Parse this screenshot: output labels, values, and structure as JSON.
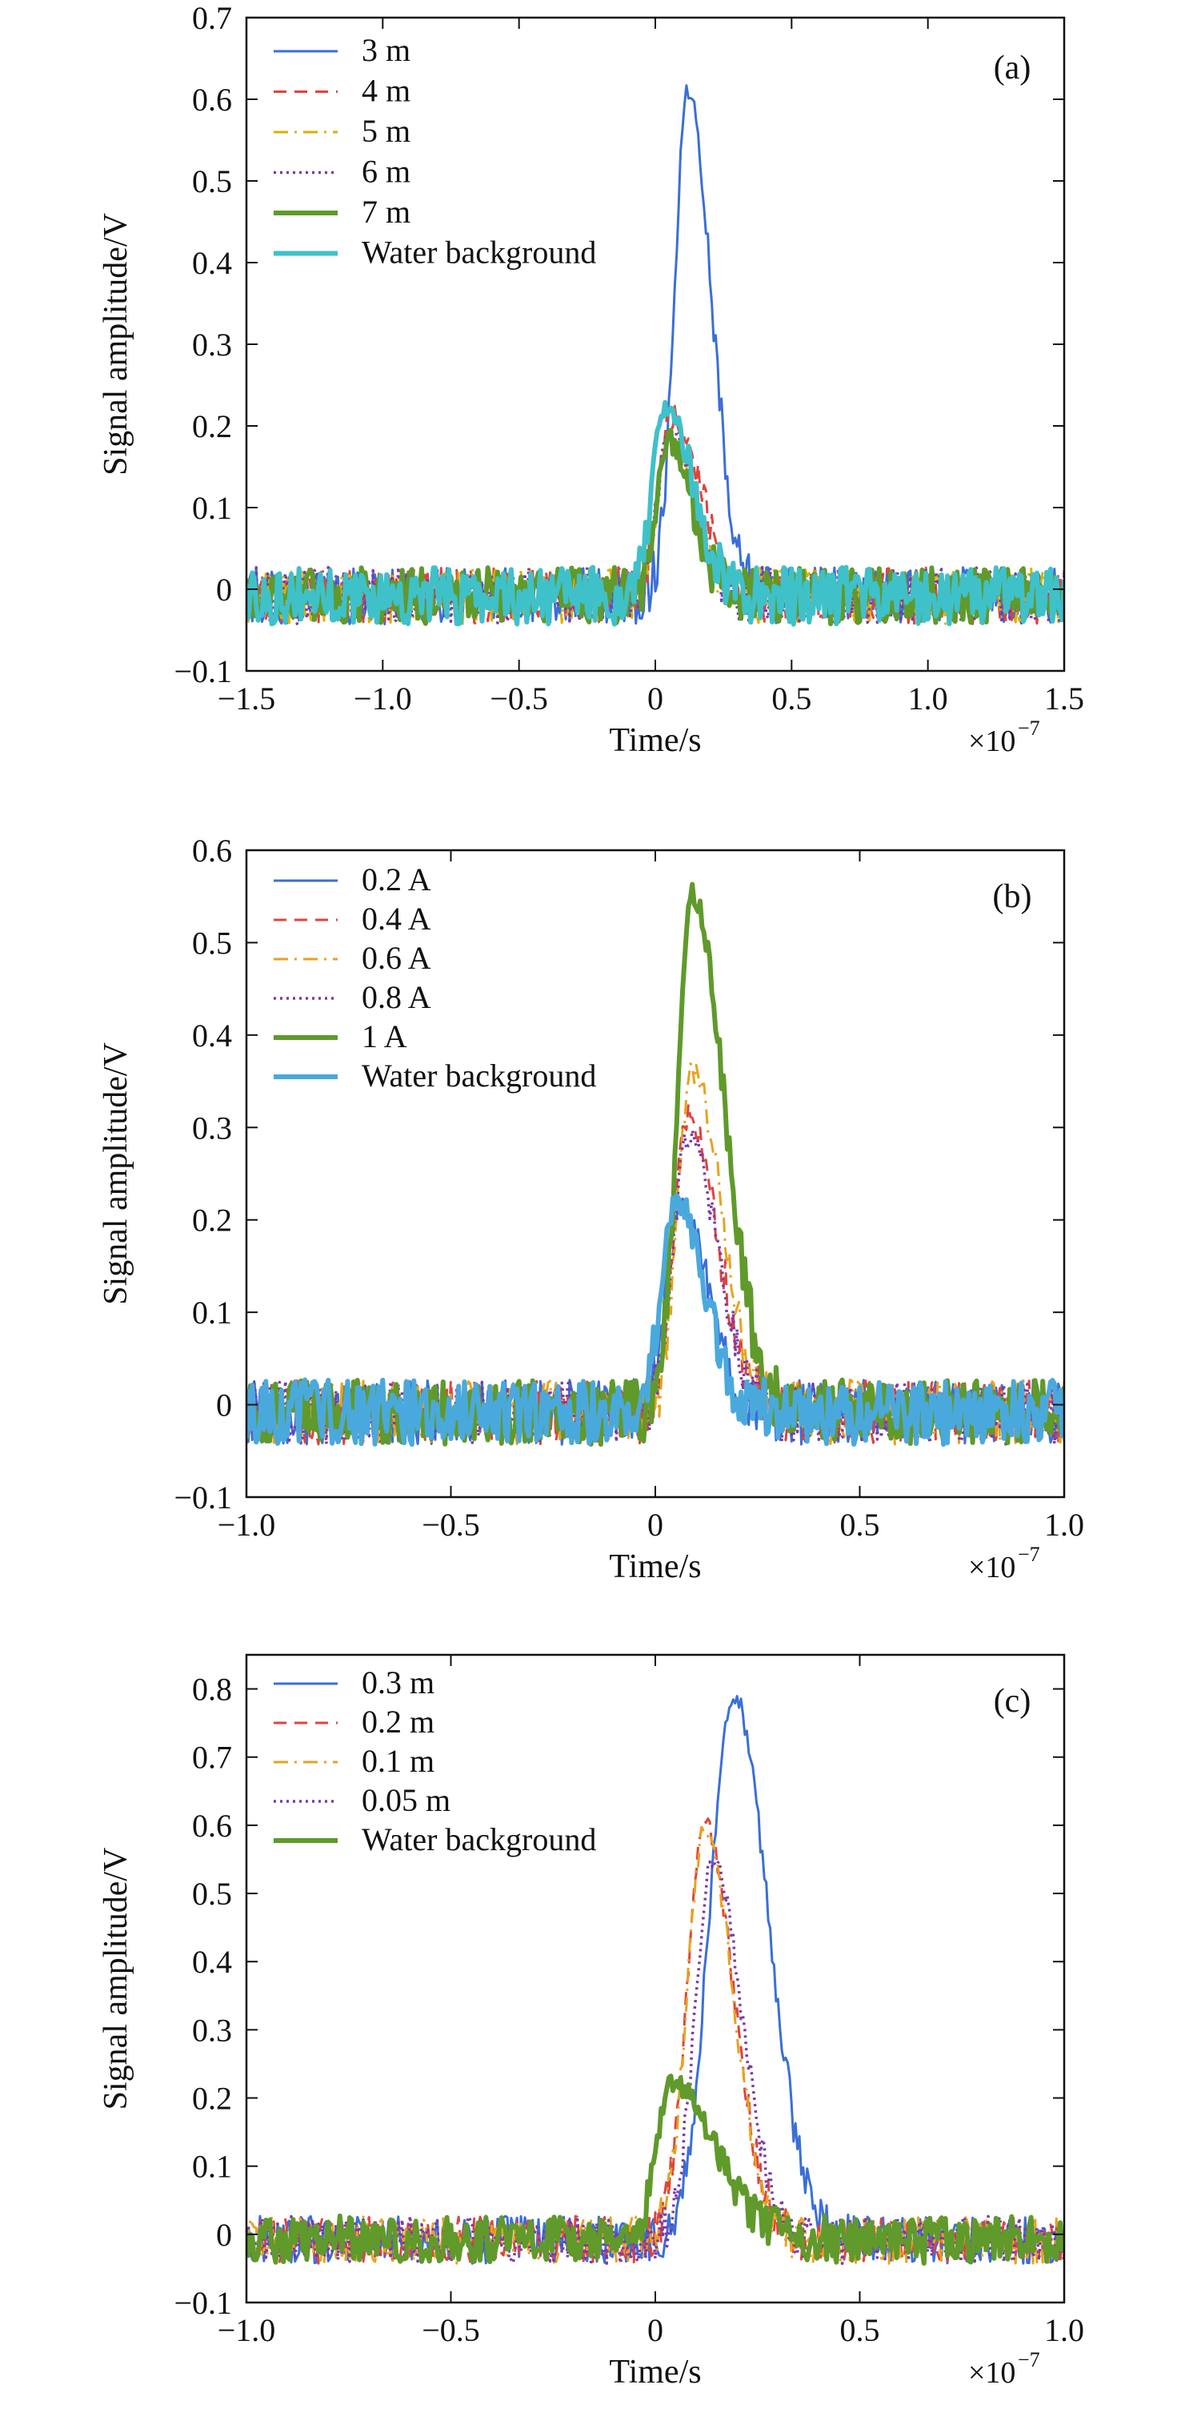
{
  "chart_data": [
    {
      "type": "line",
      "panel": "(a)",
      "xlabel": "Time/s",
      "ylabel": "Signal amplitude/V",
      "x_multiplier": "×10",
      "x_multiplier_exp": "−7",
      "xlim": [
        -1.5,
        1.5
      ],
      "ylim": [
        -0.1,
        0.7
      ],
      "xticks": [
        -1.5,
        -1.0,
        -0.5,
        0,
        0.5,
        1.0,
        1.5
      ],
      "xtick_labels": [
        "−1.5",
        "−1.0",
        "−0.5",
        "0",
        "0.5",
        "1.0",
        "1.5"
      ],
      "yticks": [
        -0.1,
        0,
        0.1,
        0.2,
        0.3,
        0.4,
        0.5,
        0.6,
        0.7
      ],
      "ytick_labels": [
        "−0.1",
        "0",
        "0.1",
        "0.2",
        "0.3",
        "0.4",
        "0.5",
        "0.6",
        "0.7"
      ],
      "legend_position": "top-left",
      "series": [
        {
          "name": "3 m",
          "color": "#3a6fd8",
          "style": "solid",
          "peak_x": 0.12,
          "peak_y": 0.62,
          "rise": 0.07,
          "fall": 0.12
        },
        {
          "name": "4 m",
          "color": "#e0443c",
          "style": "dashed",
          "peak_x": 0.06,
          "peak_y": 0.22,
          "rise": 0.07,
          "fall": 0.15
        },
        {
          "name": "5 m",
          "color": "#d9b200",
          "style": "dashdot",
          "peak_x": 0.05,
          "peak_y": 0.19,
          "rise": 0.06,
          "fall": 0.13
        },
        {
          "name": "6 m",
          "color": "#7b3aa8",
          "style": "dotted",
          "peak_x": 0.05,
          "peak_y": 0.2,
          "rise": 0.06,
          "fall": 0.13
        },
        {
          "name": "7 m",
          "color": "#5f9a2b",
          "style": "solid-thick",
          "peak_x": 0.05,
          "peak_y": 0.19,
          "rise": 0.06,
          "fall": 0.12
        },
        {
          "name": "Water background",
          "color": "#3fc1c9",
          "style": "solid-thick",
          "peak_x": 0.04,
          "peak_y": 0.23,
          "rise": 0.07,
          "fall": 0.14
        }
      ]
    },
    {
      "type": "line",
      "panel": "(b)",
      "xlabel": "Time/s",
      "ylabel": "Signal amplitude/V",
      "x_multiplier": "×10",
      "x_multiplier_exp": "−7",
      "xlim": [
        -1.0,
        1.0
      ],
      "ylim": [
        -0.1,
        0.6
      ],
      "xticks": [
        -1.0,
        -0.5,
        0,
        0.5,
        1.0
      ],
      "xtick_labels": [
        "−1.0",
        "−0.5",
        "0",
        "0.5",
        "1.0"
      ],
      "yticks": [
        -0.1,
        0,
        0.1,
        0.2,
        0.3,
        0.4,
        0.5,
        0.6
      ],
      "ytick_labels": [
        "−0.1",
        "0",
        "0.1",
        "0.2",
        "0.3",
        "0.4",
        "0.5",
        "0.6"
      ],
      "legend_position": "top-left",
      "series": [
        {
          "name": "0.2 A",
          "color": "#3a6fd8",
          "style": "solid",
          "peak_x": 0.06,
          "peak_y": 0.22,
          "rise": 0.05,
          "fall": 0.1
        },
        {
          "name": "0.4 A",
          "color": "#e0443c",
          "style": "dashed",
          "peak_x": 0.08,
          "peak_y": 0.32,
          "rise": 0.05,
          "fall": 0.1
        },
        {
          "name": "0.6 A",
          "color": "#e8a21f",
          "style": "dashdot",
          "peak_x": 0.09,
          "peak_y": 0.37,
          "rise": 0.05,
          "fall": 0.1
        },
        {
          "name": "0.8 A",
          "color": "#7b3aa8",
          "style": "dotted",
          "peak_x": 0.08,
          "peak_y": 0.3,
          "rise": 0.05,
          "fall": 0.1
        },
        {
          "name": "1 A",
          "color": "#5f9a2b",
          "style": "solid-thick",
          "peak_x": 0.09,
          "peak_y": 0.56,
          "rise": 0.05,
          "fall": 0.11
        },
        {
          "name": "Water background",
          "color": "#4aa9dc",
          "style": "solid-thick",
          "peak_x": 0.05,
          "peak_y": 0.23,
          "rise": 0.05,
          "fall": 0.1
        }
      ]
    },
    {
      "type": "line",
      "panel": "(c)",
      "xlabel": "Time/s",
      "ylabel": "Signal amplitude/V",
      "x_multiplier": "×10",
      "x_multiplier_exp": "−7",
      "xlim": [
        -1.0,
        1.0
      ],
      "ylim": [
        -0.1,
        0.85
      ],
      "xticks": [
        -1.0,
        -0.5,
        0,
        0.5,
        1.0
      ],
      "xtick_labels": [
        "−1.0",
        "−0.5",
        "0",
        "0.5",
        "1.0"
      ],
      "yticks": [
        -0.1,
        0,
        0.1,
        0.2,
        0.3,
        0.4,
        0.5,
        0.6,
        0.7,
        0.8
      ],
      "ytick_labels": [
        "−0.1",
        "0",
        "0.1",
        "0.2",
        "0.3",
        "0.4",
        "0.5",
        "0.6",
        "0.7",
        "0.8"
      ],
      "legend_position": "top-left",
      "series": [
        {
          "name": "0.3 m",
          "color": "#3a6fd8",
          "style": "solid",
          "peak_x": 0.19,
          "peak_y": 0.8,
          "rise": 0.08,
          "fall": 0.12
        },
        {
          "name": "0.2 m",
          "color": "#e0443c",
          "style": "dashed",
          "peak_x": 0.12,
          "peak_y": 0.61,
          "rise": 0.06,
          "fall": 0.1
        },
        {
          "name": "0.1 m",
          "color": "#e8a21f",
          "style": "dashdot",
          "peak_x": 0.12,
          "peak_y": 0.6,
          "rise": 0.06,
          "fall": 0.1
        },
        {
          "name": "0.05 m",
          "color": "#7b3aa8",
          "style": "dotted",
          "peak_x": 0.14,
          "peak_y": 0.56,
          "rise": 0.06,
          "fall": 0.1
        },
        {
          "name": "Water background",
          "color": "#5f9a2b",
          "style": "solid-thick",
          "peak_x": 0.04,
          "peak_y": 0.23,
          "rise": 0.05,
          "fall": 0.15
        }
      ]
    }
  ]
}
